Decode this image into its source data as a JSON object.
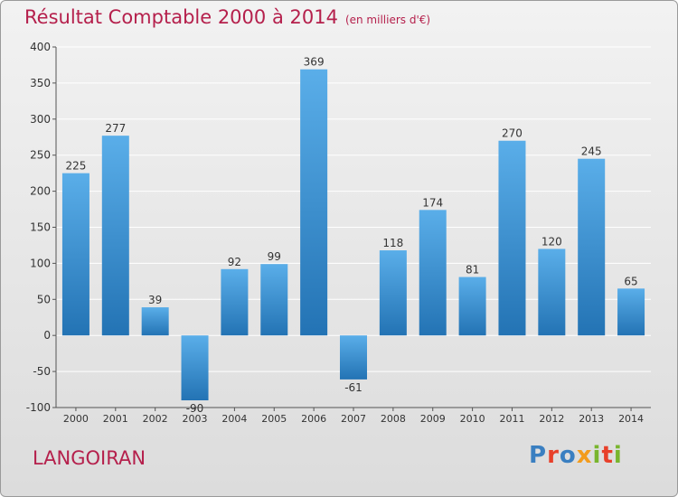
{
  "title": "Résultat Comptable 2000 à 2014",
  "subtitle": "(en milliers d'€)",
  "place": "LANGOIRAN",
  "logo": {
    "text": "Proxiti",
    "colors": [
      "#3a7fc1",
      "#e8402a",
      "#3a7fc1",
      "#f39c1d",
      "#79b52e",
      "#e8402a",
      "#79b52e"
    ]
  },
  "colors": {
    "bar_top": "#5aaee9",
    "bar_bottom": "#2373b4",
    "title": "#b5204c",
    "grid": "#ffffff"
  },
  "chart_data": {
    "type": "bar",
    "categories": [
      "2000",
      "2001",
      "2002",
      "2003",
      "2004",
      "2005",
      "2006",
      "2007",
      "2008",
      "2009",
      "2010",
      "2011",
      "2012",
      "2013",
      "2014"
    ],
    "values": [
      225,
      277,
      39,
      -90,
      92,
      99,
      369,
      -61,
      118,
      174,
      81,
      270,
      120,
      245,
      65
    ],
    "title": "Résultat Comptable 2000 à 2014",
    "subtitle": "(en milliers d'€)",
    "ylim": [
      -100,
      400
    ],
    "yticks": [
      -100,
      -50,
      0,
      50,
      100,
      150,
      200,
      250,
      300,
      350,
      400
    ],
    "grid": true
  }
}
